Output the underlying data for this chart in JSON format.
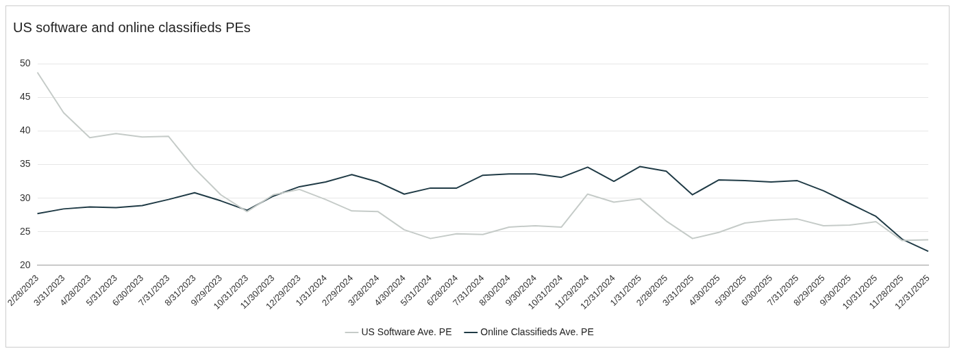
{
  "chart_data": {
    "type": "line",
    "title": "US software and online classifieds PEs",
    "categories": [
      "2/28/2023",
      "3/31/2023",
      "4/28/2023",
      "5/31/2023",
      "6/30/2023",
      "7/31/2023",
      "8/31/2023",
      "9/29/2023",
      "10/31/2023",
      "11/30/2023",
      "12/29/2023",
      "1/31/2024",
      "2/29/2024",
      "3/28/2024",
      "4/30/2024",
      "5/31/2024",
      "6/28/2024",
      "7/31/2024",
      "8/30/2024",
      "9/30/2024",
      "10/31/2024",
      "11/29/2024",
      "12/31/2024",
      "1/31/2025",
      "2/28/2025",
      "3/31/2025",
      "4/30/2025",
      "5/30/2025",
      "6/30/2025",
      "7/31/2025",
      "8/29/2025",
      "9/30/2025",
      "10/31/2025",
      "11/28/2025",
      "12/31/2025"
    ],
    "series": [
      {
        "name": "US Software Ave. PE",
        "color": "#c5cbc8",
        "values": [
          48.7,
          42.7,
          39.0,
          39.6,
          39.1,
          39.2,
          34.4,
          30.5,
          28.0,
          30.5,
          31.3,
          29.8,
          28.1,
          28.0,
          25.3,
          24.0,
          24.7,
          24.6,
          25.7,
          25.9,
          25.7,
          30.6,
          29.4,
          29.9,
          26.6,
          24.0,
          24.9,
          26.3,
          26.7,
          26.9,
          25.9,
          26.0,
          26.5,
          23.7,
          23.8
        ]
      },
      {
        "name": "Online Classifieds Ave. PE",
        "color": "#1f3a45",
        "values": [
          27.7,
          28.4,
          28.7,
          28.6,
          28.9,
          29.8,
          30.8,
          29.6,
          28.2,
          30.3,
          31.7,
          32.4,
          33.5,
          32.4,
          30.6,
          31.5,
          31.5,
          33.4,
          33.6,
          33.6,
          33.1,
          34.6,
          32.5,
          34.7,
          34.0,
          30.5,
          32.7,
          32.6,
          32.4,
          32.6,
          31.1,
          29.2,
          27.3,
          23.9,
          22.1
        ]
      }
    ],
    "ylim": [
      20,
      50
    ],
    "yticks": [
      20,
      25,
      30,
      35,
      40,
      45,
      50
    ],
    "grid": "y",
    "legend": "bottom",
    "marker": "none",
    "line_style": "solid"
  }
}
